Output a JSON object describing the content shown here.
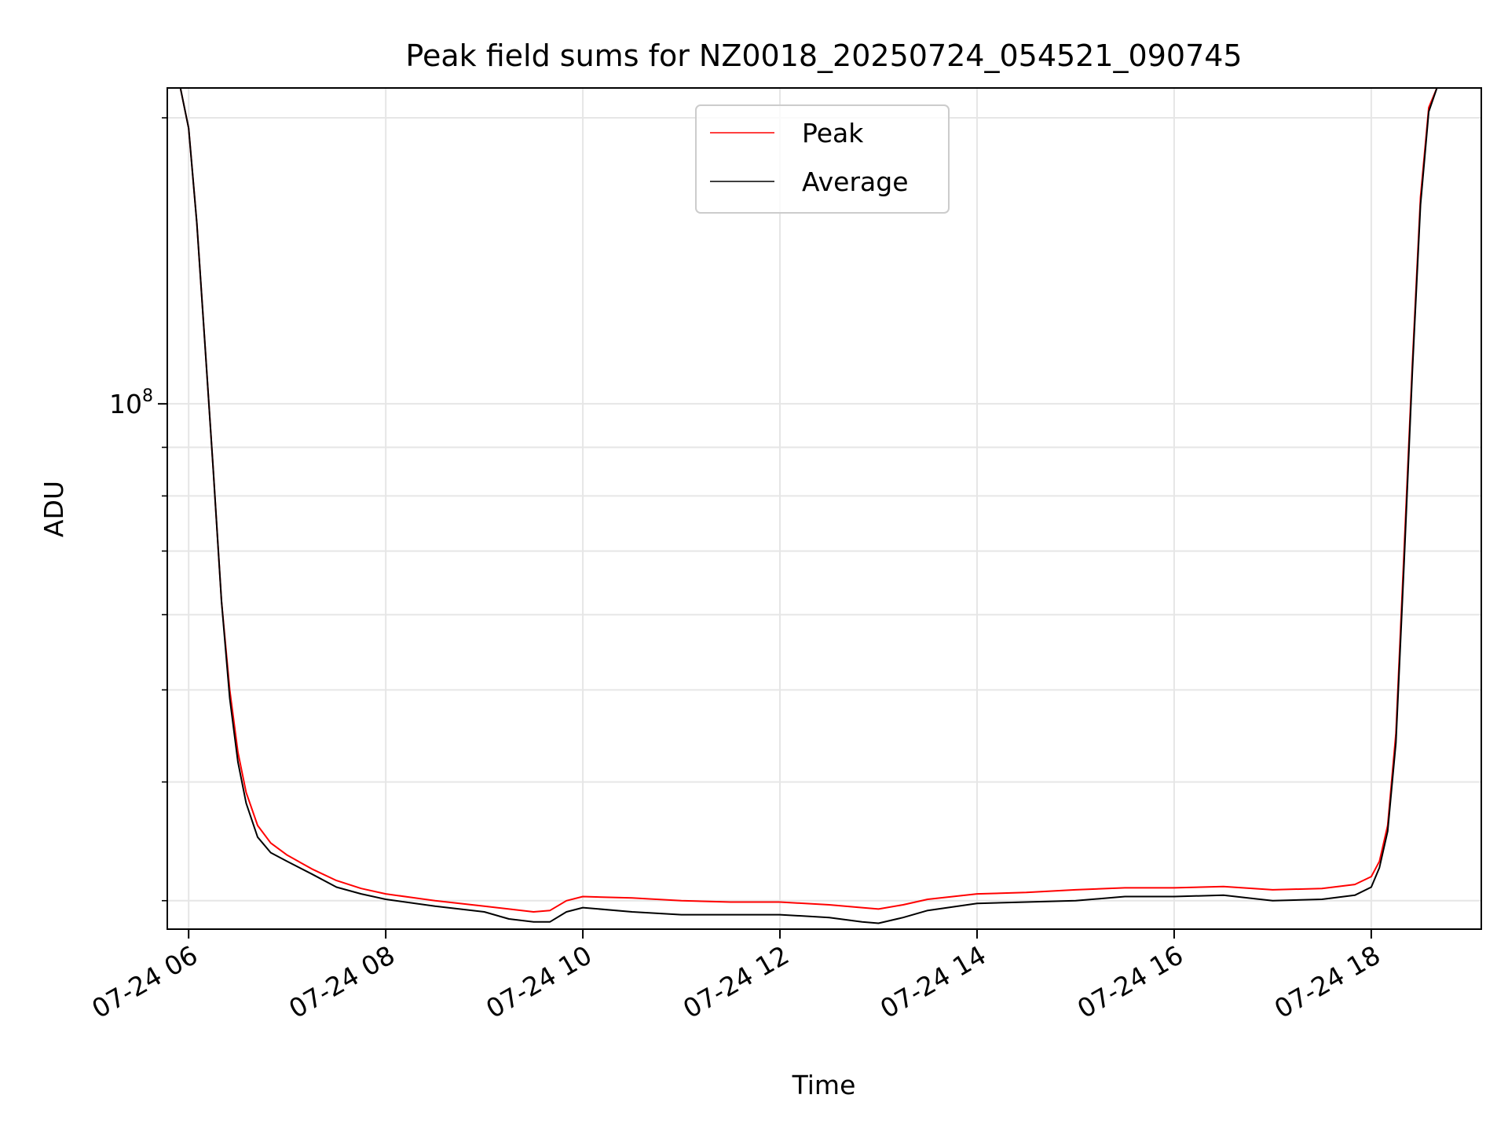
{
  "chart_data": {
    "type": "line",
    "title": "Peak field sums for NZ0018_20250724_054521_090745",
    "xlabel": "Time",
    "ylabel": "ADU",
    "y_scale": "log",
    "ylim": [
      28000000,
      215000000
    ],
    "xlim": [
      "2025-07-24 05:47",
      "2025-07-24 19:07"
    ],
    "x_ticks": [
      "07-24 06",
      "07-24 08",
      "07-24 10",
      "07-24 12",
      "07-24 14",
      "07-24 16",
      "07-24 18"
    ],
    "x_tick_times": [
      "2025-07-24 06:00",
      "2025-07-24 08:00",
      "2025-07-24 10:00",
      "2025-07-24 12:00",
      "2025-07-24 14:00",
      "2025-07-24 16:00",
      "2025-07-24 18:00"
    ],
    "y_major_tick": {
      "base": "10",
      "exponent": "8",
      "value": 100000000
    },
    "y_minor_ticks": [
      30000000,
      40000000,
      50000000,
      60000000,
      70000000,
      80000000,
      90000000,
      200000000
    ],
    "grid": true,
    "legend": {
      "placement": "upper center"
    },
    "series": [
      {
        "name": "Peak",
        "color": "#ff0000",
        "points": [
          [
            "2025-07-24 05:47",
            215000000
          ],
          [
            "2025-07-24 05:55",
            215000000
          ],
          [
            "2025-07-24 06:00",
            195000000
          ],
          [
            "2025-07-24 06:05",
            155000000
          ],
          [
            "2025-07-24 06:10",
            115000000
          ],
          [
            "2025-07-24 06:15",
            85000000
          ],
          [
            "2025-07-24 06:20",
            62000000
          ],
          [
            "2025-07-24 06:25",
            50000000
          ],
          [
            "2025-07-24 06:30",
            43000000
          ],
          [
            "2025-07-24 06:35",
            39000000
          ],
          [
            "2025-07-24 06:42",
            36000000
          ],
          [
            "2025-07-24 06:50",
            34500000
          ],
          [
            "2025-07-24 07:00",
            33500000
          ],
          [
            "2025-07-24 07:15",
            32400000
          ],
          [
            "2025-07-24 07:30",
            31500000
          ],
          [
            "2025-07-24 07:45",
            30900000
          ],
          [
            "2025-07-24 08:00",
            30500000
          ],
          [
            "2025-07-24 08:30",
            30000000
          ],
          [
            "2025-07-24 09:00",
            29600000
          ],
          [
            "2025-07-24 09:15",
            29400000
          ],
          [
            "2025-07-24 09:30",
            29200000
          ],
          [
            "2025-07-24 09:40",
            29300000
          ],
          [
            "2025-07-24 09:50",
            30000000
          ],
          [
            "2025-07-24 10:00",
            30300000
          ],
          [
            "2025-07-24 10:30",
            30200000
          ],
          [
            "2025-07-24 11:00",
            30000000
          ],
          [
            "2025-07-24 11:30",
            29900000
          ],
          [
            "2025-07-24 12:00",
            29900000
          ],
          [
            "2025-07-24 12:30",
            29700000
          ],
          [
            "2025-07-24 12:50",
            29500000
          ],
          [
            "2025-07-24 13:00",
            29400000
          ],
          [
            "2025-07-24 13:15",
            29700000
          ],
          [
            "2025-07-24 13:30",
            30100000
          ],
          [
            "2025-07-24 14:00",
            30500000
          ],
          [
            "2025-07-24 14:30",
            30600000
          ],
          [
            "2025-07-24 15:00",
            30800000
          ],
          [
            "2025-07-24 15:30",
            30950000
          ],
          [
            "2025-07-24 16:00",
            30950000
          ],
          [
            "2025-07-24 16:30",
            31050000
          ],
          [
            "2025-07-24 17:00",
            30800000
          ],
          [
            "2025-07-24 17:30",
            30900000
          ],
          [
            "2025-07-24 17:50",
            31200000
          ],
          [
            "2025-07-24 18:00",
            31800000
          ],
          [
            "2025-07-24 18:05",
            33000000
          ],
          [
            "2025-07-24 18:10",
            36000000
          ],
          [
            "2025-07-24 18:15",
            45000000
          ],
          [
            "2025-07-24 18:20",
            70000000
          ],
          [
            "2025-07-24 18:25",
            110000000
          ],
          [
            "2025-07-24 18:30",
            165000000
          ],
          [
            "2025-07-24 18:35",
            205000000
          ],
          [
            "2025-07-24 18:40",
            215000000
          ],
          [
            "2025-07-24 19:07",
            215000000
          ]
        ]
      },
      {
        "name": "Average",
        "color": "#000000",
        "points": [
          [
            "2025-07-24 05:47",
            215000000
          ],
          [
            "2025-07-24 05:55",
            215000000
          ],
          [
            "2025-07-24 06:00",
            195000000
          ],
          [
            "2025-07-24 06:05",
            155000000
          ],
          [
            "2025-07-24 06:10",
            115000000
          ],
          [
            "2025-07-24 06:15",
            85000000
          ],
          [
            "2025-07-24 06:20",
            62000000
          ],
          [
            "2025-07-24 06:25",
            49000000
          ],
          [
            "2025-07-24 06:30",
            42000000
          ],
          [
            "2025-07-24 06:35",
            38000000
          ],
          [
            "2025-07-24 06:42",
            35000000
          ],
          [
            "2025-07-24 06:50",
            33700000
          ],
          [
            "2025-07-24 07:00",
            33000000
          ],
          [
            "2025-07-24 07:15",
            32000000
          ],
          [
            "2025-07-24 07:30",
            31000000
          ],
          [
            "2025-07-24 07:45",
            30500000
          ],
          [
            "2025-07-24 08:00",
            30100000
          ],
          [
            "2025-07-24 08:30",
            29600000
          ],
          [
            "2025-07-24 09:00",
            29200000
          ],
          [
            "2025-07-24 09:15",
            28700000
          ],
          [
            "2025-07-24 09:30",
            28500000
          ],
          [
            "2025-07-24 09:40",
            28500000
          ],
          [
            "2025-07-24 09:50",
            29200000
          ],
          [
            "2025-07-24 10:00",
            29500000
          ],
          [
            "2025-07-24 10:30",
            29200000
          ],
          [
            "2025-07-24 11:00",
            29000000
          ],
          [
            "2025-07-24 11:30",
            29000000
          ],
          [
            "2025-07-24 12:00",
            29000000
          ],
          [
            "2025-07-24 12:30",
            28800000
          ],
          [
            "2025-07-24 12:50",
            28500000
          ],
          [
            "2025-07-24 13:00",
            28400000
          ],
          [
            "2025-07-24 13:15",
            28800000
          ],
          [
            "2025-07-24 13:30",
            29300000
          ],
          [
            "2025-07-24 14:00",
            29800000
          ],
          [
            "2025-07-24 14:30",
            29900000
          ],
          [
            "2025-07-24 15:00",
            30000000
          ],
          [
            "2025-07-24 15:30",
            30300000
          ],
          [
            "2025-07-24 16:00",
            30300000
          ],
          [
            "2025-07-24 16:30",
            30400000
          ],
          [
            "2025-07-24 17:00",
            30000000
          ],
          [
            "2025-07-24 17:30",
            30100000
          ],
          [
            "2025-07-24 17:50",
            30400000
          ],
          [
            "2025-07-24 18:00",
            31000000
          ],
          [
            "2025-07-24 18:05",
            32500000
          ],
          [
            "2025-07-24 18:10",
            35500000
          ],
          [
            "2025-07-24 18:15",
            44000000
          ],
          [
            "2025-07-24 18:20",
            68000000
          ],
          [
            "2025-07-24 18:25",
            108000000
          ],
          [
            "2025-07-24 18:30",
            162000000
          ],
          [
            "2025-07-24 18:35",
            203000000
          ],
          [
            "2025-07-24 18:40",
            215000000
          ],
          [
            "2025-07-24 19:07",
            215000000
          ]
        ]
      }
    ]
  }
}
